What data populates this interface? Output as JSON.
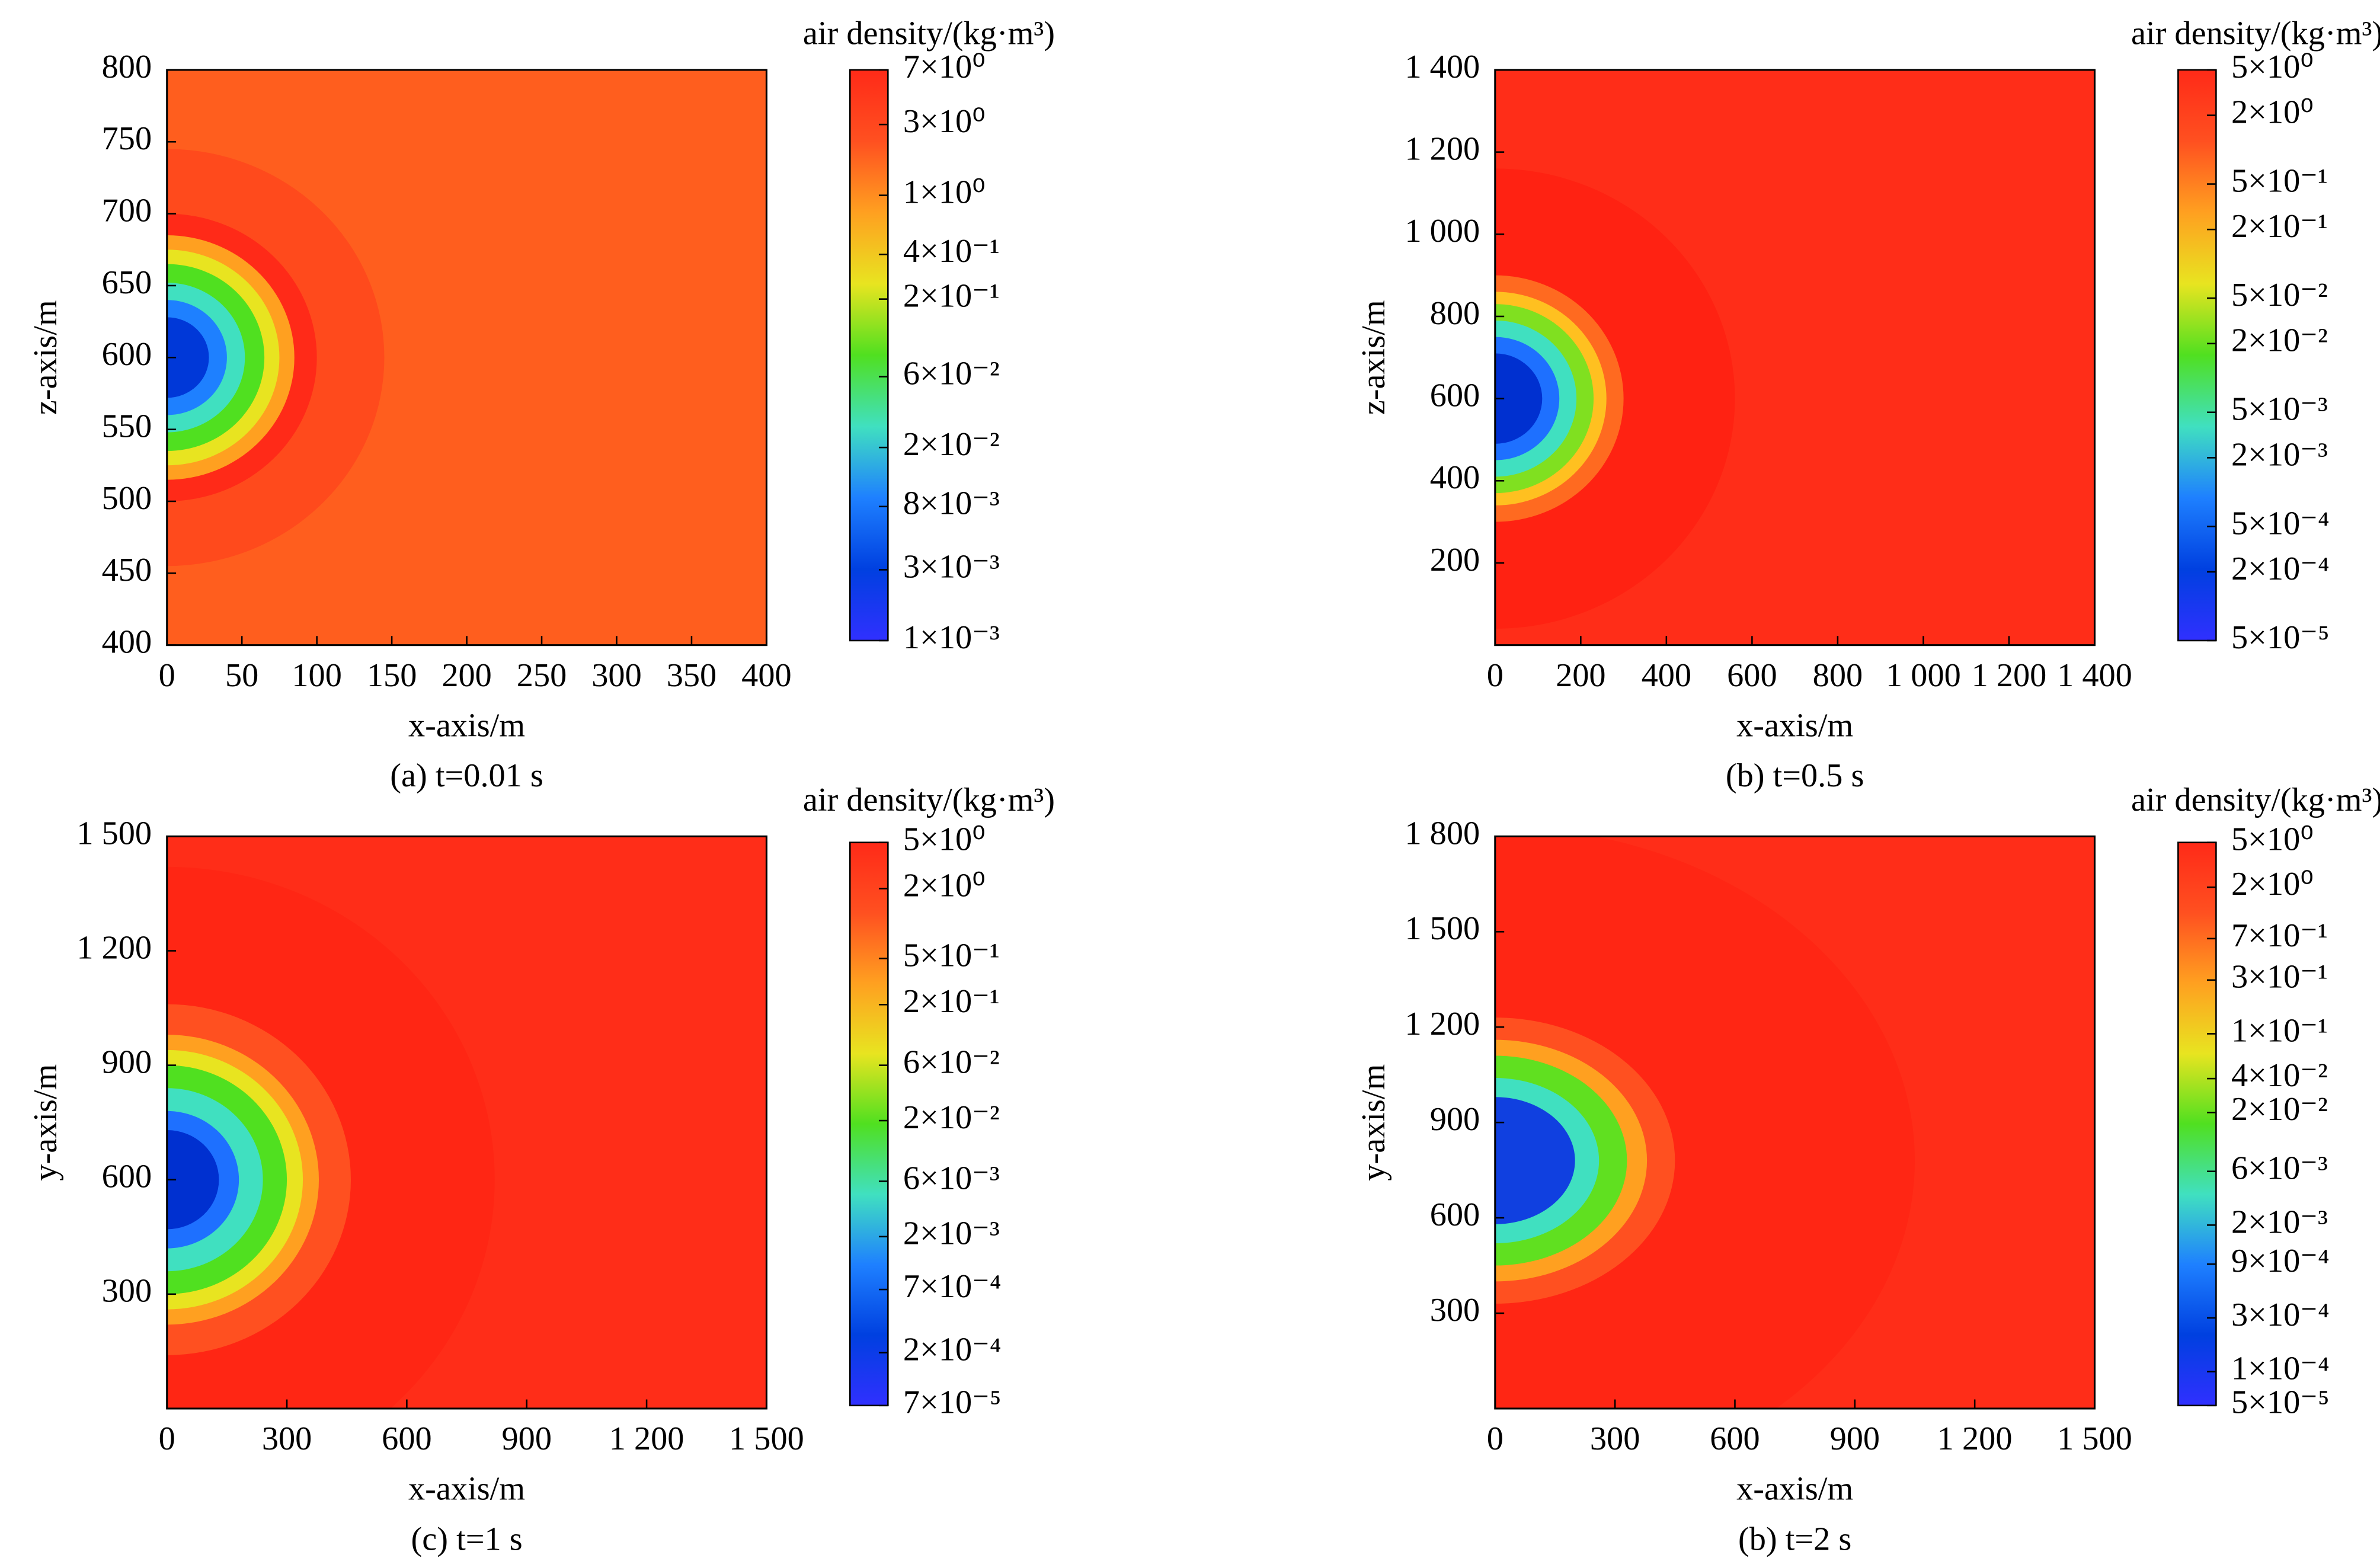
{
  "chart_data": [
    {
      "type": "contour",
      "caption": "(a) t=0.01 s",
      "x_label": "x-axis/m",
      "y_label": "z-axis/m",
      "xlim": [
        0,
        400
      ],
      "ylim": [
        400,
        800
      ],
      "xticks": [
        0,
        50,
        100,
        150,
        200,
        250,
        300,
        350,
        400
      ],
      "yticks": [
        400,
        450,
        500,
        550,
        600,
        650,
        700,
        750,
        800
      ],
      "background": "#ff5e1e",
      "center": [
        0,
        600
      ],
      "contours": [
        {
          "r": 145,
          "color": "#ff4a1c"
        },
        {
          "r": 100,
          "color": "#ff2a18"
        },
        {
          "r": 85,
          "color": "#ffa020"
        },
        {
          "r": 75,
          "color": "#e8e420"
        },
        {
          "r": 65,
          "color": "#50e020"
        },
        {
          "r": 52,
          "color": "#40e0c0"
        },
        {
          "r": 40,
          "color": "#1e80ff"
        },
        {
          "r": 28,
          "color": "#0038d8"
        }
      ],
      "colorbar_title": "air density/(kg·m³)",
      "colorbar_log": true,
      "clim": [
        0.001,
        7
      ],
      "colormap": [
        "#3030ff",
        "#0040e0",
        "#1e80ff",
        "#40e0c0",
        "#50e020",
        "#e8e420",
        "#ffa020",
        "#ff5020",
        "#ff2a18"
      ],
      "cticks": [
        {
          "value": 7,
          "label": "7×10⁰"
        },
        {
          "value": 3,
          "label": "3×10⁰"
        },
        {
          "value": 1,
          "label": "1×10⁰"
        },
        {
          "value": 0.4,
          "label": "4×10⁻¹"
        },
        {
          "value": 0.2,
          "label": "2×10⁻¹"
        },
        {
          "value": 0.06,
          "label": "6×10⁻²"
        },
        {
          "value": 0.02,
          "label": "2×10⁻²"
        },
        {
          "value": 0.008,
          "label": "8×10⁻³"
        },
        {
          "value": 0.003,
          "label": "3×10⁻³"
        },
        {
          "value": 0.001,
          "label": "1×10⁻³"
        }
      ]
    },
    {
      "type": "contour",
      "caption": "(b) t=0.5 s",
      "x_label": "x-axis/m",
      "y_label": "z-axis/m",
      "xlim": [
        0,
        1400
      ],
      "ylim": [
        0,
        1400
      ],
      "xticks": [
        0,
        200,
        400,
        600,
        800,
        {
          "value": 1000,
          "label": "1 000"
        },
        {
          "value": 1200,
          "label": "1 200"
        },
        {
          "value": 1400,
          "label": "1 400"
        }
      ],
      "yticks": [
        200,
        400,
        600,
        800,
        {
          "value": 1000,
          "label": "1 000"
        },
        {
          "value": 1200,
          "label": "1 200"
        },
        {
          "value": 1400,
          "label": "1 400"
        }
      ],
      "background": "#ff2d18",
      "center": [
        0,
        600
      ],
      "contours": [
        {
          "r": 560,
          "color": "#ff2212"
        },
        {
          "r": 300,
          "color": "#ff6a20"
        },
        {
          "r": 260,
          "color": "#ffc020"
        },
        {
          "r": 230,
          "color": "#80e020"
        },
        {
          "r": 190,
          "color": "#40e0c0"
        },
        {
          "r": 150,
          "color": "#1e70ff"
        },
        {
          "r": 110,
          "color": "#0030d0"
        }
      ],
      "colorbar_title": "air density/(kg·m³)",
      "colorbar_log": true,
      "clim": [
        5e-05,
        5
      ],
      "colormap": [
        "#3030ff",
        "#0040e0",
        "#1e80ff",
        "#40e0c0",
        "#50e020",
        "#e8e420",
        "#ffa020",
        "#ff5020",
        "#ff2a18"
      ],
      "cticks": [
        {
          "value": 5,
          "label": "5×10⁰"
        },
        {
          "value": 2,
          "label": "2×10⁰"
        },
        {
          "value": 0.5,
          "label": "5×10⁻¹"
        },
        {
          "value": 0.2,
          "label": "2×10⁻¹"
        },
        {
          "value": 0.05,
          "label": "5×10⁻²"
        },
        {
          "value": 0.02,
          "label": "2×10⁻²"
        },
        {
          "value": 0.005,
          "label": "5×10⁻³"
        },
        {
          "value": 0.002,
          "label": "2×10⁻³"
        },
        {
          "value": 0.0005,
          "label": "5×10⁻⁴"
        },
        {
          "value": 0.0002,
          "label": "2×10⁻⁴"
        },
        {
          "value": 5e-05,
          "label": "5×10⁻⁵"
        }
      ]
    },
    {
      "type": "contour",
      "caption": "(c) t=1 s",
      "x_label": "x-axis/m",
      "y_label": "y-axis/m",
      "xlim": [
        0,
        1500
      ],
      "ylim": [
        0,
        1500
      ],
      "xticks": [
        0,
        300,
        600,
        900,
        {
          "value": 1200,
          "label": "1 200"
        },
        {
          "value": 1500,
          "label": "1 500"
        }
      ],
      "yticks": [
        300,
        600,
        900,
        {
          "value": 1200,
          "label": "1 200"
        },
        {
          "value": 1500,
          "label": "1 500"
        }
      ],
      "background": "#ff2d18",
      "center": [
        0,
        600
      ],
      "contours": [
        {
          "r": 820,
          "color": "#ff2614"
        },
        {
          "r": 460,
          "color": "#ff5020"
        },
        {
          "r": 380,
          "color": "#ffa020"
        },
        {
          "r": 340,
          "color": "#e8e420"
        },
        {
          "r": 300,
          "color": "#50e020"
        },
        {
          "r": 240,
          "color": "#40e0c0"
        },
        {
          "r": 180,
          "color": "#1e70ff"
        },
        {
          "r": 130,
          "color": "#0030d0"
        }
      ],
      "colorbar_title": "air density/(kg·m³)",
      "colorbar_log": true,
      "clim": [
        7e-05,
        5
      ],
      "colormap": [
        "#3030ff",
        "#0040e0",
        "#1e80ff",
        "#40e0c0",
        "#50e020",
        "#e8e420",
        "#ffa020",
        "#ff5020",
        "#ff2a18"
      ],
      "cticks": [
        {
          "value": 5,
          "label": "5×10⁰"
        },
        {
          "value": 2,
          "label": "2×10⁰"
        },
        {
          "value": 0.5,
          "label": "5×10⁻¹"
        },
        {
          "value": 0.2,
          "label": "2×10⁻¹"
        },
        {
          "value": 0.06,
          "label": "6×10⁻²"
        },
        {
          "value": 0.02,
          "label": "2×10⁻²"
        },
        {
          "value": 0.006,
          "label": "6×10⁻³"
        },
        {
          "value": 0.002,
          "label": "2×10⁻³"
        },
        {
          "value": 0.0007,
          "label": "7×10⁻⁴"
        },
        {
          "value": 0.0002,
          "label": "2×10⁻⁴"
        },
        {
          "value": 7e-05,
          "label": "7×10⁻⁵"
        }
      ]
    },
    {
      "type": "contour",
      "caption": "(b) t=2 s",
      "x_label": "x-axis/m",
      "y_label": "y-axis/m",
      "xlim": [
        0,
        1500
      ],
      "ylim": [
        0,
        1800
      ],
      "xticks": [
        0,
        300,
        600,
        900,
        {
          "value": 1200,
          "label": "1 200"
        },
        {
          "value": 1500,
          "label": "1 500"
        }
      ],
      "yticks": [
        300,
        600,
        900,
        {
          "value": 1200,
          "label": "1 200"
        },
        {
          "value": 1500,
          "label": "1 500"
        },
        {
          "value": 1800,
          "label": "1 800"
        }
      ],
      "background": "#ff2d18",
      "center": [
        0,
        780
      ],
      "contours": [
        {
          "r": 1050,
          "color": "#ff2614"
        },
        {
          "r": 450,
          "color": "#ff5020"
        },
        {
          "r": 380,
          "color": "#ffa020"
        },
        {
          "r": 330,
          "color": "#60e020"
        },
        {
          "r": 260,
          "color": "#40e0c0"
        },
        {
          "r": 200,
          "color": "#1040e0"
        }
      ],
      "colorbar_title": "air density/(kg·m³)",
      "colorbar_log": true,
      "clim": [
        5e-05,
        5
      ],
      "colormap": [
        "#3030ff",
        "#0040e0",
        "#1e80ff",
        "#40e0c0",
        "#50e020",
        "#e8e420",
        "#ffa020",
        "#ff5020",
        "#ff2a18"
      ],
      "cticks": [
        {
          "value": 5,
          "label": "5×10⁰"
        },
        {
          "value": 2,
          "label": "2×10⁰"
        },
        {
          "value": 0.7,
          "label": "7×10⁻¹"
        },
        {
          "value": 0.3,
          "label": "3×10⁻¹"
        },
        {
          "value": 0.1,
          "label": "1×10⁻¹"
        },
        {
          "value": 0.04,
          "label": "4×10⁻²"
        },
        {
          "value": 0.02,
          "label": "2×10⁻²"
        },
        {
          "value": 0.006,
          "label": "6×10⁻³"
        },
        {
          "value": 0.002,
          "label": "2×10⁻³"
        },
        {
          "value": 0.0009,
          "label": "9×10⁻⁴"
        },
        {
          "value": 0.0003,
          "label": "3×10⁻⁴"
        },
        {
          "value": 0.0001,
          "label": "1×10⁻⁴"
        },
        {
          "value": 5e-05,
          "label": "5×10⁻⁵"
        }
      ]
    }
  ]
}
